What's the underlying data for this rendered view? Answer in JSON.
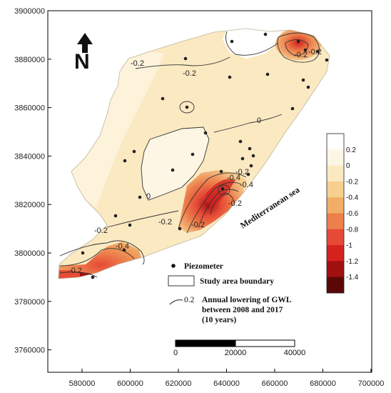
{
  "map": {
    "axes": {
      "x_ticks": [
        "580000",
        "600000",
        "620000",
        "640000",
        "660000",
        "680000",
        "700000"
      ],
      "y_ticks": [
        "3900000",
        "3880000",
        "3860000",
        "3840000",
        "3820000",
        "3800000",
        "3780000",
        "3760000"
      ]
    },
    "north_arrow": {
      "label": "N",
      "icon": "north-arrow-icon"
    },
    "sea_label": "Mediterranean sea",
    "contour_labels": [
      "-0.2",
      "-0.2",
      "-0.2",
      "-0.2",
      "0",
      "0",
      "-0.4",
      "-0.2",
      "-0.4",
      "-0.2",
      "-0.2",
      "-0.2",
      "-0.2",
      "-0.4",
      "-0.2"
    ],
    "legend": {
      "piezometer": "Piezometer",
      "boundary": "Study area boundary",
      "contour_value": "0.2",
      "contour_line1": "Annual lowering of GWL",
      "contour_line2": "between 2008 and 2017",
      "contour_line3": "(10 years)"
    },
    "scale_bar": {
      "labels": [
        "0",
        "20000",
        "40000"
      ]
    },
    "colorbar": {
      "labels": [
        "0.2",
        "0",
        "-0.2",
        "-0.4",
        "-0.6",
        "-0.8",
        "-1",
        "-1.2",
        "-1.4"
      ],
      "colors": [
        "#ffffff",
        "#fdf6e4",
        "#fbe9c2",
        "#f7cf8f",
        "#f2ad66",
        "#ec7f4c",
        "#e64a36",
        "#d5221f",
        "#a10f10",
        "#5c0707"
      ]
    }
  }
}
